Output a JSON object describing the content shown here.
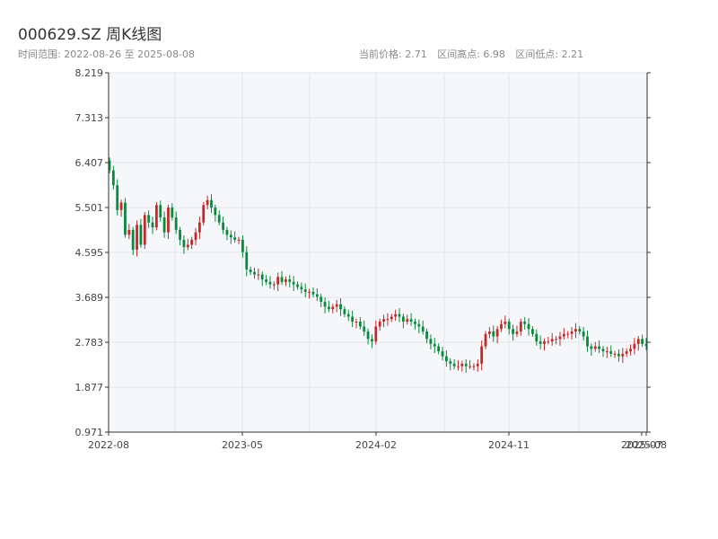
{
  "header": {
    "title": "000629.SZ 周K线图",
    "subtitle": "时间范围: 2022-08-26 至 2025-08-08",
    "current_price": "当前价格: 2.71",
    "range_high": "区间高点: 6.98",
    "range_low": "区间低点: 2.21"
  },
  "colors": {
    "up": "#c62828",
    "down": "#0a8a3c",
    "plot_bg": "#f5f7fa",
    "grid": "#e3e6ea",
    "axis": "#333333"
  },
  "chart_data": {
    "type": "candlestick",
    "title": "000629.SZ 周K线图",
    "ylim": [
      0.971,
      8.219
    ],
    "y_ticks": [
      "0.971",
      "1.877",
      "2.783",
      "3.689",
      "4.595",
      "5.501",
      "6.407",
      "7.313",
      "8.219"
    ],
    "x_tick_labels": [
      "2022-08",
      "2023-05",
      "2024-02",
      "2024-11",
      "2025-07",
      "2025-08"
    ],
    "grid": true,
    "closes": [
      6.25,
      5.95,
      5.45,
      5.6,
      4.95,
      5.05,
      4.65,
      5.15,
      4.75,
      5.35,
      5.2,
      5.1,
      5.55,
      5.3,
      5.0,
      5.5,
      5.3,
      5.05,
      4.85,
      4.7,
      4.75,
      4.85,
      5.0,
      5.2,
      5.55,
      5.65,
      5.5,
      5.35,
      5.2,
      5.05,
      4.95,
      4.9,
      4.85,
      4.85,
      4.6,
      4.25,
      4.2,
      4.15,
      4.15,
      4.05,
      4.0,
      3.95,
      3.95,
      4.1,
      4.0,
      4.05,
      4.0,
      3.95,
      3.9,
      3.85,
      3.8,
      3.8,
      3.75,
      3.7,
      3.6,
      3.5,
      3.45,
      3.5,
      3.55,
      3.45,
      3.35,
      3.3,
      3.2,
      3.2,
      3.1,
      3.0,
      2.85,
      2.8,
      3.1,
      3.2,
      3.25,
      3.25,
      3.3,
      3.35,
      3.3,
      3.2,
      3.25,
      3.2,
      3.15,
      3.1,
      3.0,
      2.85,
      2.75,
      2.7,
      2.6,
      2.5,
      2.4,
      2.35,
      2.3,
      2.3,
      2.35,
      2.3,
      2.3,
      2.3,
      2.35,
      2.7,
      2.95,
      3.0,
      2.9,
      3.05,
      3.15,
      3.2,
      3.05,
      2.95,
      3.0,
      3.2,
      3.15,
      3.05,
      2.95,
      2.8,
      2.75,
      2.8,
      2.8,
      2.85,
      2.85,
      2.9,
      2.95,
      2.95,
      3.0,
      3.05,
      3.0,
      2.9,
      2.7,
      2.65,
      2.7,
      2.65,
      2.6,
      2.6,
      2.55,
      2.55,
      2.5,
      2.55,
      2.6,
      2.65,
      2.75,
      2.85,
      2.75,
      2.71
    ]
  },
  "axis": {
    "x_label_left": "2022-08",
    "x_label_right": "2025-08"
  }
}
